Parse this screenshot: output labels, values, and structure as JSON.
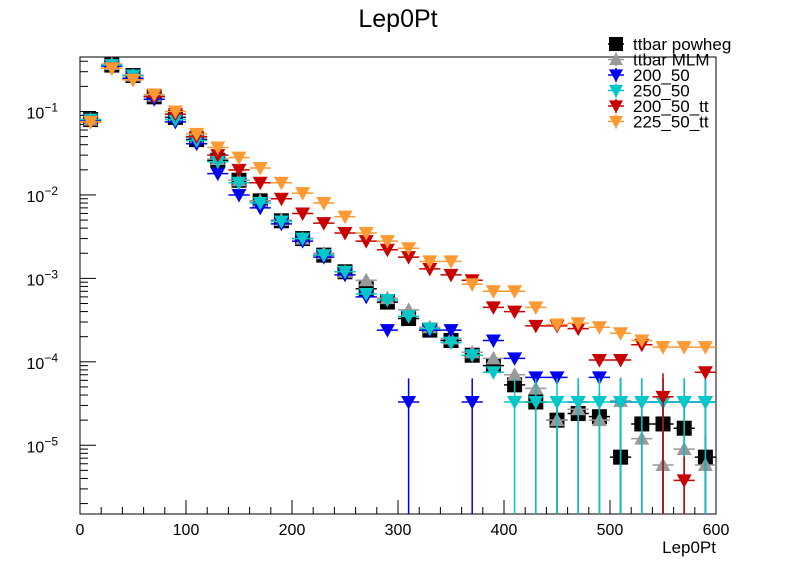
{
  "chart_data": {
    "type": "scatter",
    "title": "Lep0Pt",
    "xlabel": "Lep0Pt",
    "ylabel": "",
    "xlim": [
      0,
      600
    ],
    "ylog": true,
    "ylim": [
      1.5e-06,
      0.45
    ],
    "x_ticks": [
      0,
      100,
      200,
      300,
      400,
      500,
      600
    ],
    "y_tick_labels": [
      {
        "value": 0.1,
        "base": "10",
        "exp": "−1"
      },
      {
        "value": 0.01,
        "base": "10",
        "exp": "−2"
      },
      {
        "value": 0.001,
        "base": "10",
        "exp": "−3"
      },
      {
        "value": 0.0001,
        "base": "10",
        "exp": "−4"
      },
      {
        "value": 1e-05,
        "base": "10",
        "exp": "−5"
      }
    ],
    "bin_width": 20,
    "x": [
      10,
      30,
      50,
      70,
      90,
      110,
      130,
      150,
      170,
      190,
      210,
      230,
      250,
      270,
      290,
      310,
      330,
      350,
      370,
      390,
      410,
      430,
      450,
      470,
      490,
      510,
      530,
      550,
      570,
      590
    ],
    "legend_position": "top-right",
    "series": [
      {
        "name": "ttbar powheg",
        "marker": "square",
        "color": "#000000",
        "values": [
          0.08,
          0.36,
          0.27,
          0.15,
          0.085,
          0.046,
          0.026,
          0.015,
          0.0085,
          0.0049,
          0.003,
          0.0019,
          0.0012,
          0.00075,
          0.00052,
          0.00033,
          0.00024,
          0.00018,
          0.00012,
          9e-05,
          5.3e-05,
          3.3e-05,
          2e-05,
          2.4e-05,
          2.2e-05,
          7.2e-06,
          1.8e-05,
          1.8e-05,
          1.6e-05,
          7.2e-06
        ]
      },
      {
        "name": "ttbar MLM",
        "marker": "triangle-up",
        "color": "#999999",
        "values": [
          0.08,
          0.37,
          0.27,
          0.155,
          0.087,
          0.048,
          0.027,
          0.015,
          0.0085,
          0.005,
          0.003,
          0.002,
          0.0012,
          0.00095,
          0.00058,
          0.00042,
          0.00026,
          0.00019,
          0.00013,
          0.00011,
          7e-05,
          4.8e-05,
          2e-05,
          2.7e-05,
          2e-05,
          3.4e-05,
          1.2e-05,
          5.8e-06,
          9e-06,
          5.8e-06
        ]
      },
      {
        "name": "200_50",
        "marker": "triangle-down",
        "color": "#0000ee",
        "values": [
          0.078,
          0.35,
          0.25,
          0.14,
          0.075,
          0.041,
          0.018,
          0.01,
          0.007,
          0.0045,
          0.0028,
          0.0018,
          0.0011,
          0.0006,
          0.00024,
          3.3e-05,
          0.00024,
          0.00024,
          3.3e-05,
          0.00018,
          0.00011,
          6.5e-05,
          6.5e-05,
          3.3e-05,
          6.5e-05,
          3.3e-05,
          3.3e-05,
          3.3e-05,
          3.3e-05,
          3.3e-05
        ]
      },
      {
        "name": "250_50",
        "marker": "triangle-down",
        "color": "#00c8c8",
        "values": [
          0.08,
          0.36,
          0.27,
          0.15,
          0.08,
          0.045,
          0.025,
          0.014,
          0.008,
          0.0048,
          0.003,
          0.0019,
          0.0012,
          0.00065,
          0.00055,
          0.00035,
          0.00025,
          0.00017,
          0.00012,
          7.5e-05,
          3.3e-05,
          3.3e-05,
          3.3e-05,
          3.3e-05,
          3.3e-05,
          3.3e-05,
          3.3e-05,
          3.3e-05,
          3.3e-05,
          3.3e-05
        ]
      },
      {
        "name": "200_50_tt",
        "marker": "triangle-down",
        "color": "#c80000",
        "values": [
          0.075,
          0.33,
          0.24,
          0.15,
          0.093,
          0.05,
          0.03,
          0.02,
          0.014,
          0.009,
          0.006,
          0.0046,
          0.0035,
          0.0028,
          0.0022,
          0.0018,
          0.0013,
          0.0011,
          0.00095,
          0.00045,
          0.0004,
          0.00027,
          0.00027,
          0.00025,
          0.000105,
          0.000105,
          0.00016,
          3.8e-05,
          3.8e-06,
          7.5e-05
        ]
      },
      {
        "name": "225_50_tt",
        "marker": "triangle-down",
        "color": "#ff9933",
        "values": [
          0.075,
          0.33,
          0.24,
          0.16,
          0.1,
          0.054,
          0.037,
          0.028,
          0.021,
          0.014,
          0.0105,
          0.008,
          0.0055,
          0.0035,
          0.0028,
          0.0023,
          0.0016,
          0.0016,
          0.00085,
          0.0007,
          0.0007,
          0.00045,
          0.00028,
          0.00029,
          0.00026,
          0.00022,
          0.00018,
          0.00015,
          0.00015,
          0.00015
        ]
      }
    ]
  }
}
